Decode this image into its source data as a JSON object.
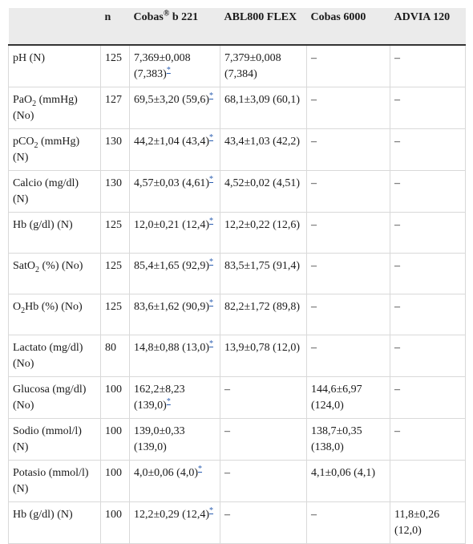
{
  "table": {
    "headers": [
      {
        "text": "",
        "sup": ""
      },
      {
        "text": "n",
        "sup": ""
      },
      {
        "text": "Cobas",
        "sup": "®",
        "suffix": " b 221"
      },
      {
        "text": "ABL800 FLEX",
        "sup": ""
      },
      {
        "text": "Cobas 6000",
        "sup": ""
      },
      {
        "text": "ADVIA 120",
        "sup": ""
      }
    ],
    "rows": [
      {
        "param": "pH (N)",
        "param_sub": "",
        "param_after": "",
        "n": "125",
        "cells": [
          {
            "text": "7,369±0,008 (7,383)",
            "ref": "*"
          },
          {
            "text": "7,379±0,008 (7,384)",
            "ref": ""
          },
          {
            "text": "–",
            "ref": ""
          },
          {
            "text": "–",
            "ref": ""
          }
        ]
      },
      {
        "param": "PaO",
        "param_sub": "2",
        "param_after": " (mmHg) (No)",
        "n": "127",
        "cells": [
          {
            "text": "69,5±3,20 (59,6)",
            "ref": "*"
          },
          {
            "text": "68,1±3,09 (60,1)",
            "ref": ""
          },
          {
            "text": "–",
            "ref": ""
          },
          {
            "text": "–",
            "ref": ""
          }
        ]
      },
      {
        "param": "pCO",
        "param_sub": "2",
        "param_after": " (mmHg) (N)",
        "n": "130",
        "cells": [
          {
            "text": "44,2±1,04 (43,4)",
            "ref": "*"
          },
          {
            "text": "43,4±1,03 (42,2)",
            "ref": ""
          },
          {
            "text": "–",
            "ref": ""
          },
          {
            "text": "–",
            "ref": ""
          }
        ]
      },
      {
        "param": "Calcio (mg/dl) (N)",
        "param_sub": "",
        "param_after": "",
        "n": "130",
        "cells": [
          {
            "text": "4,57±0,03 (4,61)",
            "ref": "*"
          },
          {
            "text": "4,52±0,02 (4,51)",
            "ref": ""
          },
          {
            "text": "–",
            "ref": ""
          },
          {
            "text": "–",
            "ref": ""
          }
        ]
      },
      {
        "param": "Hb (g/dl) (N)",
        "param_sub": "",
        "param_after": "",
        "n": "125",
        "cells": [
          {
            "text": "12,0±0,21 (12,4)",
            "ref": "*"
          },
          {
            "text": "12,2±0,22 (12,6)",
            "ref": ""
          },
          {
            "text": "–",
            "ref": ""
          },
          {
            "text": "–",
            "ref": ""
          }
        ]
      },
      {
        "param": "SatO",
        "param_sub": "2",
        "param_after": " (%) (No)",
        "n": "125",
        "cells": [
          {
            "text": "85,4±1,65 (92,9)",
            "ref": "*"
          },
          {
            "text": "83,5±1,75 (91,4)",
            "ref": ""
          },
          {
            "text": "–",
            "ref": ""
          },
          {
            "text": "–",
            "ref": ""
          }
        ]
      },
      {
        "param": "O",
        "param_sub": "2",
        "param_after": "Hb (%) (No)",
        "n": "125",
        "cells": [
          {
            "text": "83,6±1,62 (90,9)",
            "ref": "*"
          },
          {
            "text": "82,2±1,72 (89,8)",
            "ref": ""
          },
          {
            "text": "–",
            "ref": ""
          },
          {
            "text": "–",
            "ref": ""
          }
        ]
      },
      {
        "param": "Lactato (mg/dl) (No)",
        "param_sub": "",
        "param_after": "",
        "n": "80",
        "cells": [
          {
            "text": "14,8±0,88 (13,0)",
            "ref": "*"
          },
          {
            "text": "13,9±0,78 (12,0)",
            "ref": ""
          },
          {
            "text": "–",
            "ref": ""
          },
          {
            "text": "–",
            "ref": ""
          }
        ]
      },
      {
        "param": "Glucosa (mg/dl) (No)",
        "param_sub": "",
        "param_after": "",
        "n": "100",
        "cells": [
          {
            "text": "162,2±8,23 (139,0)",
            "ref": "*"
          },
          {
            "text": "–",
            "ref": ""
          },
          {
            "text": "144,6±6,97 (124,0)",
            "ref": ""
          },
          {
            "text": "–",
            "ref": ""
          }
        ]
      },
      {
        "param": "Sodio (mmol/l) (N)",
        "param_sub": "",
        "param_after": "",
        "n": "100",
        "cells": [
          {
            "text": "139,0±0,33 (139,0)",
            "ref": ""
          },
          {
            "text": "–",
            "ref": ""
          },
          {
            "text": "138,7±0,35 (138,0)",
            "ref": ""
          },
          {
            "text": "–",
            "ref": ""
          }
        ]
      },
      {
        "param": "Potasio (mmol/l) (N)",
        "param_sub": "",
        "param_after": "",
        "n": "100",
        "cells": [
          {
            "text": "4,0±0,06 (4,0)",
            "ref": "*"
          },
          {
            "text": "–",
            "ref": ""
          },
          {
            "text": "4,1±0,06 (4,1)",
            "ref": ""
          },
          {
            "text": "",
            "ref": ""
          }
        ]
      },
      {
        "param": "Hb (g/dl) (N)",
        "param_sub": "",
        "param_after": "",
        "n": "100",
        "cells": [
          {
            "text": "12,2±0,29 (12,4)",
            "ref": "*"
          },
          {
            "text": "–",
            "ref": ""
          },
          {
            "text": "–",
            "ref": ""
          },
          {
            "text": "11,8±0,26 (12,0)",
            "ref": ""
          }
        ]
      }
    ]
  }
}
